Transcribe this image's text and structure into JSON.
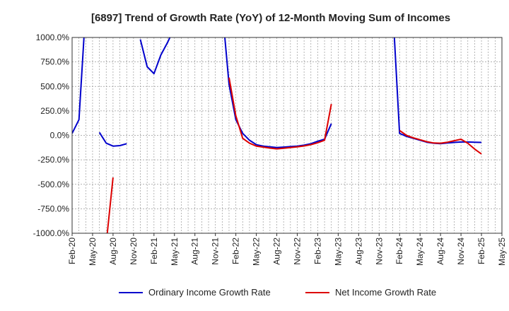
{
  "chart_data": {
    "type": "line",
    "title": "[6897]  Trend of Growth Rate (YoY) of 12-Month Moving Sum of Incomes",
    "xlabel": "",
    "ylabel": "",
    "ylim": [
      -1000,
      1000
    ],
    "y_ticks": [
      1000,
      750,
      500,
      250,
      0,
      -250,
      -500,
      -750,
      -1000
    ],
    "y_tick_labels": [
      "1000.0%",
      "750.0%",
      "500.0%",
      "250.0%",
      "0.0%",
      "-250.0%",
      "-500.0%",
      "-750.0%",
      "-1000.0%"
    ],
    "x_tick_labels": [
      "Feb-20",
      "May-20",
      "Aug-20",
      "Nov-20",
      "Feb-21",
      "May-21",
      "Aug-21",
      "Nov-21",
      "Feb-22",
      "May-22",
      "Aug-22",
      "Nov-22",
      "Feb-23",
      "May-23",
      "Aug-23",
      "Nov-23",
      "Feb-24",
      "May-24",
      "Aug-24",
      "Nov-24",
      "Feb-25",
      "May-25"
    ],
    "x_start": "2020-02",
    "grid": true,
    "legend_position": "bottom",
    "series": [
      {
        "name": "Ordinary Income Growth Rate",
        "color": "#0000cc",
        "points": [
          [
            "2020-02",
            20
          ],
          [
            "2020-03",
            160
          ],
          [
            "2020-04",
            1300
          ],
          null,
          [
            "2020-06",
            30
          ],
          [
            "2020-07",
            -80
          ],
          [
            "2020-08",
            -110
          ],
          [
            "2020-09",
            -105
          ],
          [
            "2020-10",
            -85
          ],
          null,
          [
            "2020-12",
            980
          ],
          [
            "2021-01",
            700
          ],
          [
            "2021-02",
            630
          ],
          [
            "2021-03",
            820
          ],
          [
            "2021-04",
            950
          ],
          [
            "2021-05",
            1100
          ],
          null,
          [
            "2021-12",
            1300
          ],
          [
            "2022-01",
            520
          ],
          [
            "2022-02",
            160
          ],
          [
            "2022-03",
            20
          ],
          [
            "2022-04",
            -50
          ],
          [
            "2022-05",
            -95
          ],
          [
            "2022-06",
            -110
          ],
          [
            "2022-07",
            -118
          ],
          [
            "2022-08",
            -125
          ],
          [
            "2022-09",
            -120
          ],
          [
            "2022-10",
            -115
          ],
          [
            "2022-11",
            -110
          ],
          [
            "2022-12",
            -100
          ],
          [
            "2023-01",
            -85
          ],
          [
            "2023-02",
            -60
          ],
          [
            "2023-03",
            -40
          ],
          [
            "2023-04",
            120
          ],
          null,
          [
            "2024-01",
            1300
          ],
          [
            "2024-02",
            20
          ],
          [
            "2024-03",
            -10
          ],
          [
            "2024-04",
            -30
          ],
          [
            "2024-05",
            -50
          ],
          [
            "2024-06",
            -70
          ],
          [
            "2024-07",
            -80
          ],
          [
            "2024-08",
            -85
          ],
          [
            "2024-09",
            -78
          ],
          [
            "2024-10",
            -72
          ],
          [
            "2024-11",
            -68
          ],
          [
            "2024-12",
            -68
          ],
          [
            "2025-01",
            -70
          ],
          [
            "2025-02",
            -72
          ]
        ]
      },
      {
        "name": "Net Income Growth Rate",
        "color": "#dd0000",
        "points": [
          [
            "2020-07",
            -1100
          ],
          [
            "2020-08",
            -430
          ],
          null,
          [
            "2022-01",
            590
          ],
          [
            "2022-02",
            200
          ],
          [
            "2022-03",
            -30
          ],
          [
            "2022-04",
            -80
          ],
          [
            "2022-05",
            -110
          ],
          [
            "2022-06",
            -120
          ],
          [
            "2022-07",
            -130
          ],
          [
            "2022-08",
            -138
          ],
          [
            "2022-09",
            -132
          ],
          [
            "2022-10",
            -125
          ],
          [
            "2022-11",
            -118
          ],
          [
            "2022-12",
            -108
          ],
          [
            "2023-01",
            -95
          ],
          [
            "2023-02",
            -75
          ],
          [
            "2023-03",
            -50
          ],
          [
            "2023-04",
            320
          ],
          null,
          [
            "2024-02",
            50
          ],
          [
            "2024-03",
            0
          ],
          [
            "2024-04",
            -25
          ],
          [
            "2024-05",
            -45
          ],
          [
            "2024-06",
            -65
          ],
          [
            "2024-07",
            -78
          ],
          [
            "2024-08",
            -80
          ],
          [
            "2024-09",
            -70
          ],
          [
            "2024-10",
            -55
          ],
          [
            "2024-11",
            -40
          ],
          [
            "2024-12",
            -80
          ],
          [
            "2025-01",
            -140
          ],
          [
            "2025-02",
            -190
          ]
        ]
      }
    ]
  }
}
